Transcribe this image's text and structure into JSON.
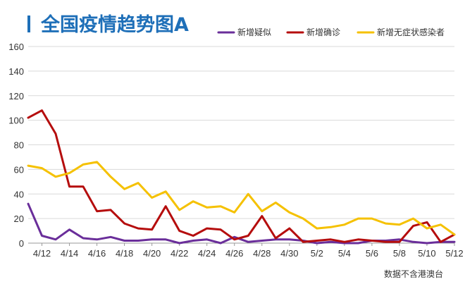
{
  "chart_data": {
    "type": "line",
    "title": "全国疫情趋势图A",
    "note": "数据不含港澳台",
    "xlabel": "",
    "ylabel": "",
    "ylim": [
      0,
      160
    ],
    "yticks": [
      0,
      20,
      40,
      60,
      80,
      100,
      120,
      140,
      160
    ],
    "grid": true,
    "legend_position": "top-right",
    "categories": [
      "4/11",
      "4/12",
      "4/13",
      "4/14",
      "4/15",
      "4/16",
      "4/17",
      "4/18",
      "4/19",
      "4/20",
      "4/21",
      "4/22",
      "4/23",
      "4/24",
      "4/25",
      "4/26",
      "4/27",
      "4/28",
      "4/29",
      "4/30",
      "5/1",
      "5/2",
      "5/3",
      "5/4",
      "5/5",
      "5/6",
      "5/7",
      "5/8",
      "5/9",
      "5/10",
      "5/11",
      "5/12"
    ],
    "xtick_labels": [
      "4/12",
      "4/14",
      "4/16",
      "4/18",
      "4/20",
      "4/22",
      "4/24",
      "4/26",
      "4/28",
      "4/30",
      "5/2",
      "5/4",
      "5/6",
      "5/8",
      "5/10",
      "5/12"
    ],
    "series": [
      {
        "name": "新增疑似",
        "color": "#6a2e9a",
        "values": [
          32,
          6,
          3,
          11,
          4,
          3,
          5,
          2,
          2,
          3,
          3,
          0,
          2,
          3,
          0,
          5,
          1,
          2,
          3,
          3,
          2,
          0,
          1,
          0,
          0,
          2,
          2,
          3,
          1,
          0,
          1,
          1
        ]
      },
      {
        "name": "新增确诊",
        "color": "#b50d0d",
        "values": [
          102,
          108,
          89,
          46,
          46,
          26,
          27,
          16,
          12,
          11,
          30,
          10,
          6,
          12,
          11,
          3,
          6,
          22,
          4,
          12,
          1,
          2,
          3,
          1,
          3,
          2,
          1,
          1,
          14,
          17,
          1,
          7
        ]
      },
      {
        "name": "新增无症状感染者",
        "color": "#f5c100",
        "values": [
          63,
          61,
          54,
          57,
          64,
          66,
          54,
          44,
          49,
          37,
          42,
          27,
          34,
          29,
          30,
          25,
          40,
          26,
          33,
          25,
          20,
          12,
          13,
          15,
          20,
          20,
          16,
          15,
          20,
          12,
          15,
          7
        ]
      }
    ]
  }
}
